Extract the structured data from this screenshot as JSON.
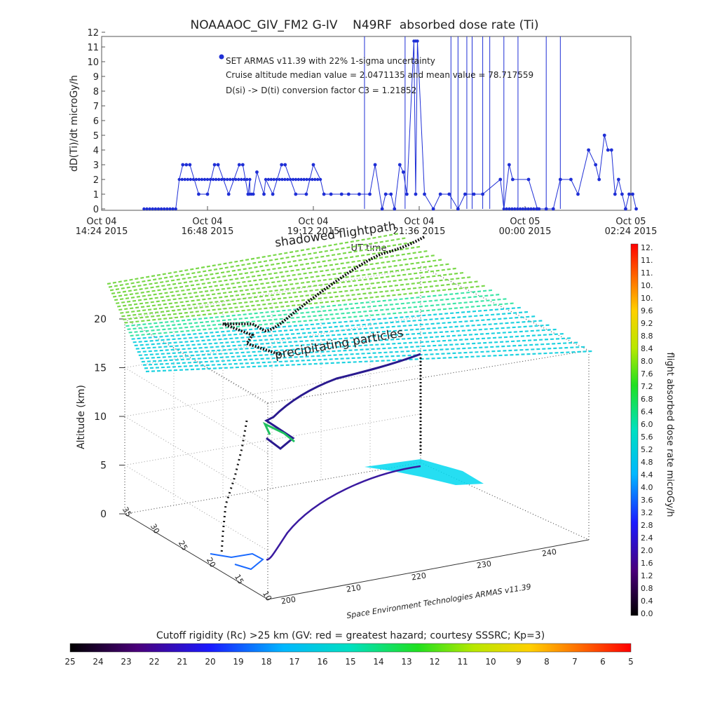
{
  "chart_data": [
    {
      "type": "scatter",
      "title": "NOAAAOC_GIV_FM2 G-IV    N49RF  absorbed dose rate (Ti)",
      "ylabel": "dD(Ti)/dt microGy/h",
      "xlabel": "UT time",
      "ylim": [
        0,
        12
      ],
      "y_ticks": [
        "0",
        "1",
        "2",
        "3",
        "4",
        "5",
        "6",
        "7",
        "8",
        "9",
        "10",
        "11",
        "12"
      ],
      "x_ticks": [
        {
          "l1": "Oct 04",
          "l2": "14:24 2015"
        },
        {
          "l1": "Oct 04",
          "l2": "16:48 2015"
        },
        {
          "l1": "Oct 04",
          "l2": "19:12 2015"
        },
        {
          "l1": "Oct 04",
          "l2": "21:36 2015"
        },
        {
          "l1": "Oct 05",
          "l2": "00:00 2015"
        },
        {
          "l1": "Oct 05",
          "l2": "02:24 2015"
        }
      ],
      "annotations": [
        "SET ARMAS v11.39 with 22% 1-sigma uncertainty",
        "Cruise altitude median value = 2.0471135 and mean value = 78.717559",
        "D(si) -> D(ti) conversion factor C3 = 1.21852"
      ],
      "series": [
        {
          "color": "#1f2fd6",
          "segments": [
            {
              "x0": 0.24,
              "x1": 0.42,
              "y": 0
            },
            {
              "x0": 0.44,
              "x1": 0.84,
              "y": 2
            },
            {
              "x0": 0.84,
              "x1": 0.86,
              "y": 1
            },
            {
              "x0": 0.93,
              "x1": 1.24,
              "y": 2
            },
            {
              "x0": 1.77,
              "x1": 1.79,
              "y": 11.4
            },
            {
              "x0": 2.28,
              "x1": 2.48,
              "y": 0
            }
          ],
          "points": [
            [
              0.46,
              3
            ],
            [
              0.48,
              3
            ],
            [
              0.5,
              3
            ],
            [
              0.55,
              1
            ],
            [
              0.6,
              1
            ],
            [
              0.64,
              3
            ],
            [
              0.66,
              3
            ],
            [
              0.72,
              1
            ],
            [
              0.78,
              3
            ],
            [
              0.8,
              3
            ],
            [
              0.83,
              1
            ],
            [
              0.88,
              2.5
            ],
            [
              0.92,
              1
            ],
            [
              0.97,
              1
            ],
            [
              1.02,
              3
            ],
            [
              1.04,
              3
            ],
            [
              1.1,
              1
            ],
            [
              1.16,
              1
            ],
            [
              1.2,
              3
            ],
            [
              1.26,
              1
            ],
            [
              1.3,
              1
            ],
            [
              1.36,
              1
            ],
            [
              1.4,
              1
            ],
            [
              1.46,
              1
            ],
            [
              1.52,
              1
            ],
            [
              1.55,
              3
            ],
            [
              1.59,
              0
            ],
            [
              1.61,
              1
            ],
            [
              1.64,
              1
            ],
            [
              1.66,
              0
            ],
            [
              1.69,
              3
            ],
            [
              1.71,
              2.5
            ],
            [
              1.73,
              1
            ],
            [
              1.78,
              1
            ],
            [
              1.83,
              1
            ],
            [
              1.88,
              0
            ],
            [
              1.92,
              1
            ],
            [
              1.97,
              1
            ],
            [
              2.02,
              0
            ],
            [
              2.06,
              1
            ],
            [
              2.11,
              1
            ],
            [
              2.16,
              1
            ],
            [
              2.26,
              2
            ],
            [
              2.31,
              3
            ],
            [
              2.33,
              2
            ],
            [
              2.42,
              2
            ],
            [
              2.47,
              0
            ],
            [
              2.52,
              0
            ],
            [
              2.56,
              0
            ],
            [
              2.6,
              2
            ],
            [
              2.66,
              2
            ],
            [
              2.7,
              1
            ],
            [
              2.76,
              4
            ],
            [
              2.8,
              3
            ],
            [
              2.82,
              2
            ],
            [
              2.85,
              5
            ],
            [
              2.87,
              4
            ],
            [
              2.89,
              4
            ],
            [
              2.91,
              1
            ],
            [
              2.93,
              2
            ],
            [
              2.95,
              1
            ],
            [
              2.97,
              0
            ],
            [
              2.99,
              1
            ],
            [
              3.01,
              1
            ],
            [
              3.03,
              0
            ]
          ],
          "spikes": [
            1.49,
            1.72,
            1.98,
            2.02,
            2.07,
            2.1,
            2.16,
            2.2,
            2.28,
            2.36,
            2.52,
            2.6
          ],
          "x_range": [
            0,
            3
          ]
        }
      ]
    },
    {
      "type": "scatter",
      "subtype": "3d-trajectory",
      "zlabel": "Altitude (km)",
      "z_ticks": [
        "0",
        "5",
        "10",
        "15",
        "20"
      ],
      "x_ticks_3d": [
        "200",
        "210",
        "220",
        "230",
        "240"
      ],
      "y_ticks_3d": [
        "10",
        "15",
        "20",
        "25",
        "30",
        "35"
      ],
      "labels": [
        "shadowed flightpath",
        "precipitating particles",
        "Space Environment Technologies ARMAS v11.39"
      ]
    },
    {
      "type": "heatmap",
      "subtype": "colorbar",
      "title": "flight absorbed dose rate microGy/h",
      "ticks": [
        "12.",
        "11.",
        "11.",
        "10.",
        "10.",
        "9.6",
        "9.2",
        "8.8",
        "8.4",
        "8.0",
        "7.6",
        "7.2",
        "6.8",
        "6.4",
        "6.0",
        "5.6",
        "5.2",
        "4.8",
        "4.4",
        "4.0",
        "3.6",
        "3.2",
        "2.8",
        "2.4",
        "2.0",
        "1.6",
        "1.2",
        "0.8",
        "0.4",
        "0.0"
      ]
    },
    {
      "type": "heatmap",
      "subtype": "colorbar",
      "title": "Cutoff rigidity (Rc) >25 km (GV: red = greatest hazard; courtesy SSSRC; Kp=3)",
      "ticks": [
        "25",
        "24",
        "23",
        "22",
        "21",
        "20",
        "19",
        "18",
        "17",
        "16",
        "15",
        "14",
        "13",
        "12",
        "11",
        "10",
        "9",
        "8",
        "7",
        "6",
        "5"
      ]
    }
  ]
}
